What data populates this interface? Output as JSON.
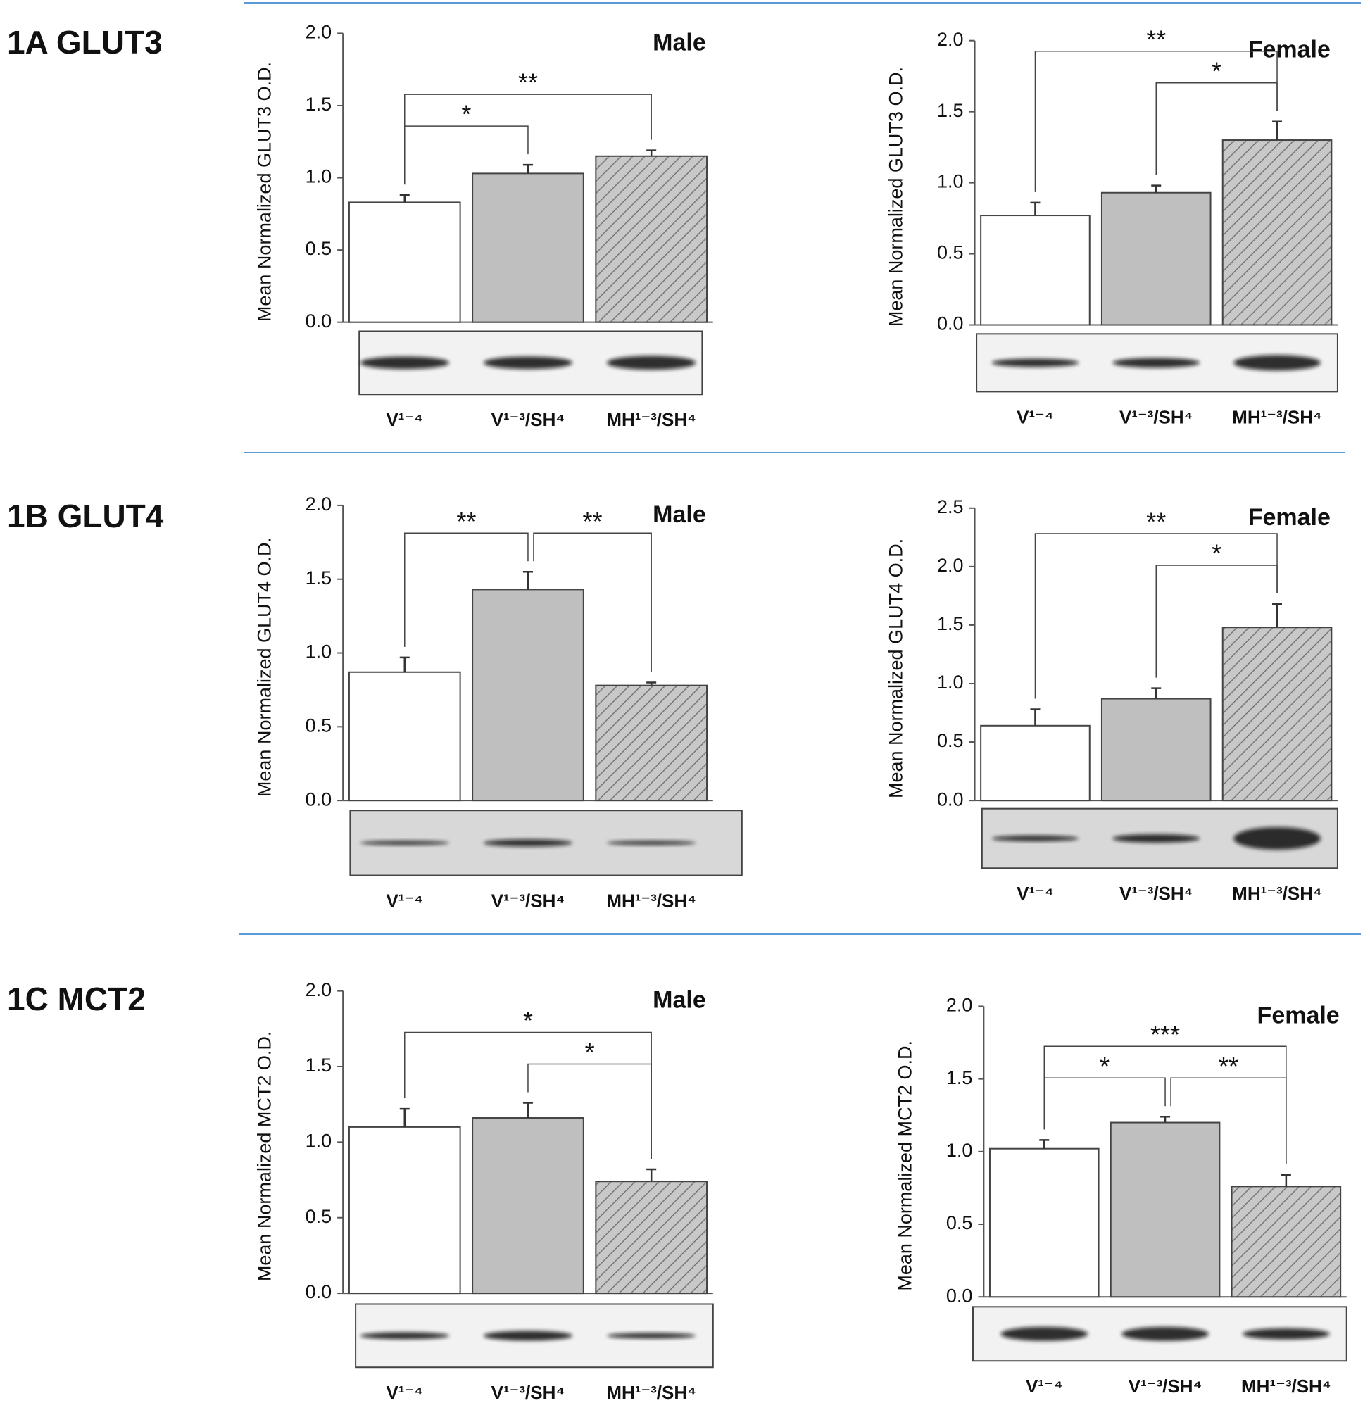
{
  "row_labels": [
    "1A  GLUT3",
    "1B  GLUT4",
    "1C  MCT2"
  ],
  "chart_data": [
    {
      "type": "bar",
      "title": "Male",
      "y_label": "Mean Normalized GLUT3 O.D.",
      "categories": [
        "V¹⁻⁴",
        "V¹⁻³/SH⁴",
        "MH¹⁻³/SH⁴"
      ],
      "values": [
        0.83,
        1.03,
        1.15
      ],
      "errors": [
        0.05,
        0.06,
        0.04
      ],
      "colors": [
        "#ffffff",
        "#bfbfbf",
        "#bfbfbf"
      ],
      "hatch": [
        false,
        false,
        true
      ],
      "ylim": [
        0,
        2
      ],
      "yticks": [
        {
          "value": 0,
          "label": "0.0"
        },
        {
          "value": 0.5,
          "label": "0.5"
        },
        {
          "value": 1,
          "label": "1.0"
        },
        {
          "value": 1.5,
          "label": "1.5"
        },
        {
          "value": 2,
          "label": "2.0"
        }
      ],
      "significance": [
        {
          "from": 0,
          "to": 1,
          "label": "*"
        },
        {
          "from": 0,
          "to": 2,
          "label": "**"
        }
      ]
    },
    {
      "type": "bar",
      "title": "Female",
      "y_label": "Mean Normalized GLUT3 O.D.",
      "categories": [
        "V¹⁻⁴",
        "V¹⁻³/SH⁴",
        "MH¹⁻³/SH⁴"
      ],
      "values": [
        0.77,
        0.93,
        1.3
      ],
      "errors": [
        0.09,
        0.05,
        0.13
      ],
      "colors": [
        "#ffffff",
        "#bfbfbf",
        "#bfbfbf"
      ],
      "hatch": [
        false,
        false,
        true
      ],
      "ylim": [
        0,
        2
      ],
      "yticks": [
        {
          "value": 0,
          "label": "0.0"
        },
        {
          "value": 0.5,
          "label": "0.5"
        },
        {
          "value": 1,
          "label": "1.0"
        },
        {
          "value": 1.5,
          "label": "1.5"
        },
        {
          "value": 2,
          "label": "2.0"
        }
      ],
      "significance": [
        {
          "from": 1,
          "to": 2,
          "label": "*"
        },
        {
          "from": 0,
          "to": 2,
          "label": "**"
        }
      ]
    },
    {
      "type": "bar",
      "title": "Male",
      "y_label": "Mean Normalized GLUT4 O.D.",
      "categories": [
        "V¹⁻⁴",
        "V¹⁻³/SH⁴",
        "MH¹⁻³/SH⁴"
      ],
      "values": [
        0.87,
        1.43,
        0.78
      ],
      "errors": [
        0.1,
        0.12,
        0.02
      ],
      "colors": [
        "#ffffff",
        "#bfbfbf",
        "#bfbfbf"
      ],
      "hatch": [
        false,
        false,
        true
      ],
      "ylim": [
        0,
        2
      ],
      "yticks": [
        {
          "value": 0,
          "label": "0.0"
        },
        {
          "value": 0.5,
          "label": "0.5"
        },
        {
          "value": 1,
          "label": "1.0"
        },
        {
          "value": 1.5,
          "label": "1.5"
        },
        {
          "value": 2,
          "label": "2.0"
        }
      ],
      "significance": [
        {
          "from": 0,
          "to": 1,
          "label": "**"
        },
        {
          "from": 1,
          "to": 2,
          "label": "**"
        }
      ]
    },
    {
      "type": "bar",
      "title": "Female",
      "y_label": "Mean Normalized GLUT4 O.D.",
      "categories": [
        "V¹⁻⁴",
        "V¹⁻³/SH⁴",
        "MH¹⁻³/SH⁴"
      ],
      "values": [
        0.64,
        0.87,
        1.48
      ],
      "errors": [
        0.14,
        0.09,
        0.2
      ],
      "colors": [
        "#ffffff",
        "#bfbfbf",
        "#bfbfbf"
      ],
      "hatch": [
        false,
        false,
        true
      ],
      "ylim": [
        0,
        2.5
      ],
      "yticks": [
        {
          "value": 0,
          "label": "0.0"
        },
        {
          "value": 0.5,
          "label": "0.5"
        },
        {
          "value": 1,
          "label": "1.0"
        },
        {
          "value": 1.5,
          "label": "1.5"
        },
        {
          "value": 2,
          "label": "2.0"
        },
        {
          "value": 2.5,
          "label": "2.5"
        }
      ],
      "significance": [
        {
          "from": 1,
          "to": 2,
          "label": "*"
        },
        {
          "from": 0,
          "to": 2,
          "label": "**"
        }
      ]
    },
    {
      "type": "bar",
      "title": "Male",
      "y_label": "Mean Normalized MCT2 O.D.",
      "categories": [
        "V¹⁻⁴",
        "V¹⁻³/SH⁴",
        "MH¹⁻³/SH⁴"
      ],
      "values": [
        1.1,
        1.16,
        0.74
      ],
      "errors": [
        0.12,
        0.1,
        0.08
      ],
      "colors": [
        "#ffffff",
        "#bfbfbf",
        "#bfbfbf"
      ],
      "hatch": [
        false,
        false,
        true
      ],
      "ylim": [
        0,
        2
      ],
      "yticks": [
        {
          "value": 0,
          "label": "0.0"
        },
        {
          "value": 0.5,
          "label": "0.5"
        },
        {
          "value": 1,
          "label": "1.0"
        },
        {
          "value": 1.5,
          "label": "1.5"
        },
        {
          "value": 2,
          "label": "2.0"
        }
      ],
      "significance": [
        {
          "from": 1,
          "to": 2,
          "label": "*"
        },
        {
          "from": 0,
          "to": 2,
          "label": "*"
        }
      ]
    },
    {
      "type": "bar",
      "title": "Female",
      "y_label": "Mean Normalized MCT2 O.D.",
      "categories": [
        "V¹⁻⁴",
        "V¹⁻³/SH⁴",
        "MH¹⁻³/SH⁴"
      ],
      "values": [
        1.02,
        1.2,
        0.76
      ],
      "errors": [
        0.06,
        0.04,
        0.08
      ],
      "colors": [
        "#ffffff",
        "#bfbfbf",
        "#bfbfbf"
      ],
      "hatch": [
        false,
        false,
        true
      ],
      "ylim": [
        0,
        2
      ],
      "yticks": [
        {
          "value": 0,
          "label": "0.0"
        },
        {
          "value": 0.5,
          "label": "0.5"
        },
        {
          "value": 1,
          "label": "1.0"
        },
        {
          "value": 1.5,
          "label": "1.5"
        },
        {
          "value": 2,
          "label": "2.0"
        }
      ],
      "significance": [
        {
          "from": 0,
          "to": 1,
          "label": "*"
        },
        {
          "from": 1,
          "to": 2,
          "label": "**"
        },
        {
          "from": 0,
          "to": 2,
          "label": "***"
        }
      ]
    }
  ]
}
